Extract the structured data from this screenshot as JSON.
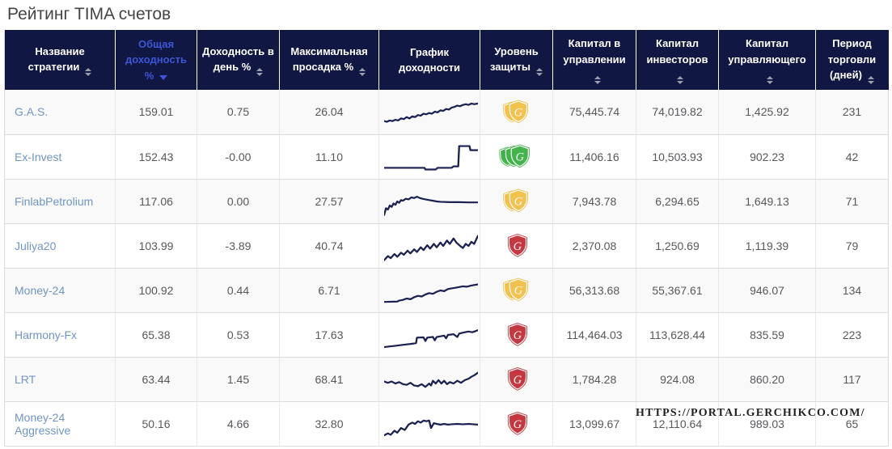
{
  "page": {
    "title": "Рейтинг TIMA счетов"
  },
  "watermark": "HTTPS://PORTAL.GERCHIKCO.COM/",
  "colors": {
    "header_bg": "#101743",
    "active_sort": "#3d56d6",
    "link": "#6f95c5",
    "sparkline": "#1b2150",
    "shield_yellow": "#F2C14E",
    "shield_green": "#43B34B",
    "shield_red": "#C53840"
  },
  "table": {
    "headers": [
      {
        "label": "Название стратегии",
        "sortable": true,
        "active": false
      },
      {
        "label": "Общая доходность %",
        "sortable": true,
        "active": true,
        "sort_dir": "desc"
      },
      {
        "label": "Доходность в день %",
        "sortable": true,
        "active": false
      },
      {
        "label": "Максимальная просадка %",
        "sortable": true,
        "active": false
      },
      {
        "label": "График доходности",
        "sortable": false,
        "active": false
      },
      {
        "label": "Уровень защиты",
        "sortable": true,
        "active": false
      },
      {
        "label": "Капитал в управлении",
        "sortable": true,
        "active": false
      },
      {
        "label": "Капитал инвесторов",
        "sortable": true,
        "active": false
      },
      {
        "label": "Капитал управляющего",
        "sortable": true,
        "active": false
      },
      {
        "label": "Период торговли (дней)",
        "sortable": true,
        "active": false
      }
    ],
    "rows": [
      {
        "name": "G.A.S.",
        "total_return": "159.01",
        "daily_return": "0.75",
        "max_drawdown": "26.04",
        "protection": {
          "level": "medium",
          "shields": 2,
          "color": "#F2C14E"
        },
        "capital_in_management": "75,445.74",
        "capital_investors": "74,019.82",
        "capital_manager": "1,425.92",
        "trading_days": "231"
      },
      {
        "name": "Ex-Invest",
        "total_return": "152.43",
        "daily_return": "-0.00",
        "max_drawdown": "11.10",
        "protection": {
          "level": "high",
          "shields": 3,
          "color": "#43B34B"
        },
        "capital_in_management": "11,406.16",
        "capital_investors": "10,503.93",
        "capital_manager": "902.23",
        "trading_days": "42"
      },
      {
        "name": "FinlabPetrolium",
        "total_return": "117.06",
        "daily_return": "0.00",
        "max_drawdown": "27.57",
        "protection": {
          "level": "medium",
          "shields": 2,
          "color": "#F2C14E"
        },
        "capital_in_management": "7,943.78",
        "capital_investors": "6,294.65",
        "capital_manager": "1,649.13",
        "trading_days": "71"
      },
      {
        "name": "Juliya20",
        "total_return": "103.99",
        "daily_return": "-3.89",
        "max_drawdown": "40.74",
        "protection": {
          "level": "low",
          "shields": 1,
          "color": "#C53840"
        },
        "capital_in_management": "2,370.08",
        "capital_investors": "1,250.69",
        "capital_manager": "1,119.39",
        "trading_days": "79"
      },
      {
        "name": "Money-24",
        "total_return": "100.92",
        "daily_return": "0.44",
        "max_drawdown": "6.71",
        "protection": {
          "level": "medium",
          "shields": 2,
          "color": "#F2C14E"
        },
        "capital_in_management": "56,313.68",
        "capital_investors": "55,367.61",
        "capital_manager": "946.07",
        "trading_days": "134"
      },
      {
        "name": "Harmony-Fx",
        "total_return": "65.38",
        "daily_return": "0.53",
        "max_drawdown": "17.63",
        "protection": {
          "level": "low",
          "shields": 1,
          "color": "#C53840"
        },
        "capital_in_management": "114,464.03",
        "capital_investors": "113,628.44",
        "capital_manager": "835.59",
        "trading_days": "223"
      },
      {
        "name": "LRT",
        "total_return": "63.44",
        "daily_return": "1.45",
        "max_drawdown": "68.41",
        "protection": {
          "level": "low",
          "shields": 1,
          "color": "#C53840"
        },
        "capital_in_management": "1,784.28",
        "capital_investors": "924.08",
        "capital_manager": "860.20",
        "trading_days": "117"
      },
      {
        "name": "Money-24 Aggressive",
        "total_return": "50.16",
        "daily_return": "4.66",
        "max_drawdown": "32.80",
        "protection": {
          "level": "low",
          "shields": 1,
          "color": "#C53840"
        },
        "capital_in_management": "13,099.67",
        "capital_investors": "12,110.64",
        "capital_manager": "989.03",
        "trading_days": "65"
      }
    ]
  },
  "chart_data": [
    {
      "type": "line",
      "strategy": "G.A.S.",
      "note": "steady noisy uptrend",
      "x_range": [
        0,
        100
      ],
      "y_normalized": true,
      "points": [
        [
          0,
          22
        ],
        [
          3,
          20
        ],
        [
          6,
          24
        ],
        [
          9,
          22
        ],
        [
          12,
          26
        ],
        [
          15,
          24
        ],
        [
          18,
          30
        ],
        [
          21,
          28
        ],
        [
          24,
          34
        ],
        [
          27,
          30
        ],
        [
          30,
          36
        ],
        [
          33,
          34
        ],
        [
          36,
          40
        ],
        [
          39,
          38
        ],
        [
          42,
          44
        ],
        [
          45,
          42
        ],
        [
          48,
          46
        ],
        [
          51,
          44
        ],
        [
          54,
          50
        ],
        [
          57,
          48
        ],
        [
          60,
          54
        ],
        [
          63,
          52
        ],
        [
          66,
          58
        ],
        [
          69,
          56
        ],
        [
          72,
          62
        ],
        [
          75,
          64
        ],
        [
          78,
          68
        ],
        [
          81,
          66
        ],
        [
          84,
          70
        ],
        [
          87,
          72
        ],
        [
          90,
          70
        ],
        [
          93,
          74
        ],
        [
          96,
          72
        ],
        [
          100,
          74
        ]
      ]
    },
    {
      "type": "line",
      "strategy": "Ex-Invest",
      "note": "flat then late step jump",
      "x_range": [
        0,
        100
      ],
      "y_normalized": true,
      "points": [
        [
          0,
          18
        ],
        [
          40,
          18
        ],
        [
          43,
          18
        ],
        [
          44,
          13
        ],
        [
          55,
          13
        ],
        [
          57,
          18
        ],
        [
          72,
          18
        ],
        [
          74,
          22
        ],
        [
          79,
          22
        ],
        [
          80,
          82
        ],
        [
          91,
          82
        ],
        [
          92,
          70
        ],
        [
          100,
          70
        ]
      ]
    },
    {
      "type": "line",
      "strategy": "FinlabPetrolium",
      "note": "fast rise then slow fade to flat",
      "x_range": [
        0,
        100
      ],
      "y_normalized": true,
      "points": [
        [
          0,
          10
        ],
        [
          2,
          30
        ],
        [
          4,
          26
        ],
        [
          6,
          38
        ],
        [
          8,
          34
        ],
        [
          10,
          44
        ],
        [
          12,
          40
        ],
        [
          14,
          50
        ],
        [
          16,
          46
        ],
        [
          18,
          54
        ],
        [
          20,
          52
        ],
        [
          23,
          58
        ],
        [
          26,
          56
        ],
        [
          29,
          62
        ],
        [
          32,
          60
        ],
        [
          35,
          64
        ],
        [
          38,
          60
        ],
        [
          41,
          58
        ],
        [
          44,
          56
        ],
        [
          48,
          54
        ],
        [
          52,
          52
        ],
        [
          56,
          50
        ],
        [
          60,
          49
        ],
        [
          70,
          48
        ],
        [
          80,
          48
        ],
        [
          90,
          47
        ],
        [
          100,
          47
        ]
      ]
    },
    {
      "type": "line",
      "strategy": "Juliya20",
      "note": "volatile zigzag uptrend",
      "x_range": [
        0,
        100
      ],
      "y_normalized": true,
      "points": [
        [
          0,
          8
        ],
        [
          4,
          20
        ],
        [
          7,
          14
        ],
        [
          11,
          26
        ],
        [
          14,
          18
        ],
        [
          18,
          30
        ],
        [
          21,
          24
        ],
        [
          25,
          36
        ],
        [
          28,
          28
        ],
        [
          32,
          40
        ],
        [
          35,
          32
        ],
        [
          39,
          46
        ],
        [
          42,
          38
        ],
        [
          46,
          52
        ],
        [
          49,
          42
        ],
        [
          53,
          56
        ],
        [
          56,
          46
        ],
        [
          60,
          60
        ],
        [
          63,
          50
        ],
        [
          67,
          66
        ],
        [
          70,
          56
        ],
        [
          74,
          72
        ],
        [
          77,
          60
        ],
        [
          81,
          50
        ],
        [
          84,
          44
        ],
        [
          87,
          56
        ],
        [
          90,
          50
        ],
        [
          93,
          62
        ],
        [
          96,
          56
        ],
        [
          100,
          80
        ]
      ]
    },
    {
      "type": "line",
      "strategy": "Money-24",
      "note": "flat start then smooth climb",
      "x_range": [
        0,
        100
      ],
      "y_normalized": true,
      "points": [
        [
          0,
          16
        ],
        [
          14,
          17
        ],
        [
          16,
          20
        ],
        [
          20,
          22
        ],
        [
          24,
          26
        ],
        [
          28,
          24
        ],
        [
          32,
          30
        ],
        [
          36,
          34
        ],
        [
          40,
          32
        ],
        [
          44,
          38
        ],
        [
          48,
          42
        ],
        [
          52,
          40
        ],
        [
          56,
          46
        ],
        [
          60,
          50
        ],
        [
          64,
          48
        ],
        [
          68,
          54
        ],
        [
          72,
          56
        ],
        [
          76,
          58
        ],
        [
          80,
          60
        ],
        [
          84,
          62
        ],
        [
          88,
          61
        ],
        [
          92,
          64
        ],
        [
          96,
          66
        ],
        [
          100,
          68
        ]
      ]
    },
    {
      "type": "line",
      "strategy": "Harmony-Fx",
      "note": "rise with sawtooth dips",
      "x_range": [
        0,
        100
      ],
      "y_normalized": true,
      "points": [
        [
          0,
          14
        ],
        [
          6,
          16
        ],
        [
          12,
          18
        ],
        [
          18,
          20
        ],
        [
          24,
          22
        ],
        [
          30,
          24
        ],
        [
          34,
          26
        ],
        [
          35,
          42
        ],
        [
          42,
          43
        ],
        [
          44,
          32
        ],
        [
          46,
          42
        ],
        [
          52,
          44
        ],
        [
          54,
          34
        ],
        [
          56,
          44
        ],
        [
          60,
          46
        ],
        [
          64,
          48
        ],
        [
          66,
          40
        ],
        [
          68,
          50
        ],
        [
          74,
          52
        ],
        [
          78,
          44
        ],
        [
          80,
          54
        ],
        [
          86,
          58
        ],
        [
          90,
          60
        ],
        [
          94,
          58
        ],
        [
          100,
          64
        ]
      ]
    },
    {
      "type": "line",
      "strategy": "LRT",
      "note": "choppy sideways then late rally",
      "x_range": [
        0,
        100
      ],
      "y_normalized": true,
      "points": [
        [
          0,
          44
        ],
        [
          4,
          40
        ],
        [
          8,
          44
        ],
        [
          12,
          38
        ],
        [
          16,
          42
        ],
        [
          20,
          36
        ],
        [
          24,
          34
        ],
        [
          28,
          40
        ],
        [
          32,
          32
        ],
        [
          36,
          30
        ],
        [
          40,
          36
        ],
        [
          44,
          28
        ],
        [
          48,
          38
        ],
        [
          50,
          32
        ],
        [
          52,
          46
        ],
        [
          55,
          38
        ],
        [
          58,
          48
        ],
        [
          61,
          38
        ],
        [
          64,
          46
        ],
        [
          67,
          36
        ],
        [
          70,
          42
        ],
        [
          74,
          38
        ],
        [
          78,
          46
        ],
        [
          82,
          40
        ],
        [
          86,
          48
        ],
        [
          90,
          52
        ],
        [
          93,
          58
        ],
        [
          96,
          62
        ],
        [
          100,
          70
        ]
      ]
    },
    {
      "type": "line",
      "strategy": "Money-24 Aggressive",
      "note": "noisy rise, drop, then flat",
      "x_range": [
        0,
        100
      ],
      "y_normalized": true,
      "points": [
        [
          0,
          16
        ],
        [
          4,
          22
        ],
        [
          7,
          18
        ],
        [
          11,
          30
        ],
        [
          14,
          24
        ],
        [
          18,
          38
        ],
        [
          22,
          32
        ],
        [
          26,
          48
        ],
        [
          30,
          54
        ],
        [
          33,
          50
        ],
        [
          36,
          58
        ],
        [
          39,
          54
        ],
        [
          42,
          60
        ],
        [
          45,
          58
        ],
        [
          48,
          60
        ],
        [
          50,
          38
        ],
        [
          53,
          52
        ],
        [
          56,
          50
        ],
        [
          60,
          48
        ],
        [
          64,
          50
        ],
        [
          68,
          48
        ],
        [
          72,
          49
        ],
        [
          78,
          50
        ],
        [
          84,
          49
        ],
        [
          90,
          50
        ],
        [
          95,
          49
        ],
        [
          100,
          48
        ]
      ]
    }
  ]
}
